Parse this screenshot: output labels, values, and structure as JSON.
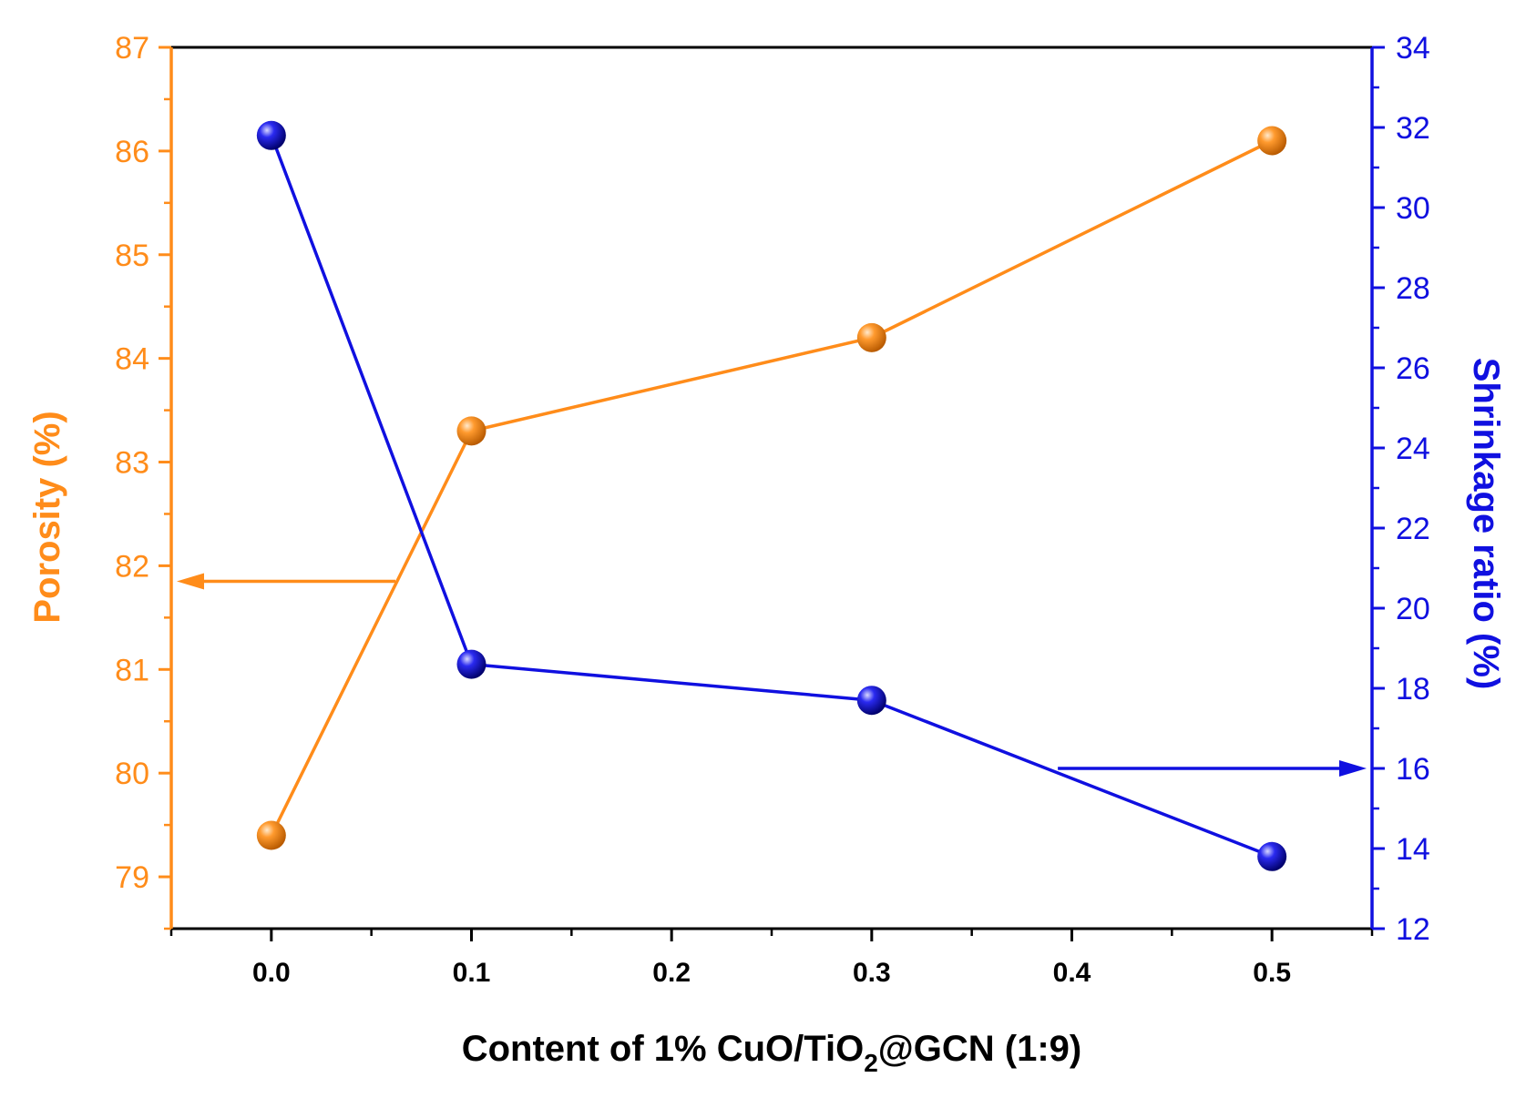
{
  "chart_data": {
    "type": "line",
    "title": "",
    "xlabel": {
      "prefix": "Content of 1% CuO/TiO",
      "subscript": "2",
      "suffix": "@GCN (1:9)"
    },
    "ylabel_left": "Porosity (%)",
    "ylabel_right": "Shrinkage ratio (%)",
    "xlim": [
      -0.05,
      0.55
    ],
    "ylim_left": [
      78.5,
      87
    ],
    "ylim_right": [
      12,
      34
    ],
    "x_ticks": [
      "0.0",
      "0.1",
      "0.2",
      "0.3",
      "0.4",
      "0.5"
    ],
    "y_ticks_left": [
      "79",
      "80",
      "81",
      "82",
      "83",
      "84",
      "85",
      "86",
      "87"
    ],
    "y_ticks_right": [
      "12",
      "14",
      "16",
      "18",
      "20",
      "22",
      "24",
      "26",
      "28",
      "30",
      "32",
      "34"
    ],
    "series": [
      {
        "name": "Porosity",
        "axis": "left",
        "color": "#FF8C1A",
        "x": [
          0.0,
          0.1,
          0.3,
          0.5
        ],
        "values": [
          79.4,
          83.3,
          84.2,
          86.1
        ]
      },
      {
        "name": "Shrinkage ratio",
        "axis": "right",
        "color": "#1010E0",
        "x": [
          0.0,
          0.1,
          0.3,
          0.5
        ],
        "values": [
          31.8,
          18.6,
          17.7,
          13.8
        ]
      }
    ],
    "annotations": [
      {
        "name": "porosity-axis-arrow",
        "points_to": "left",
        "series": "Porosity",
        "x_from": 0.062,
        "x_to": -0.05,
        "y": 81.85
      },
      {
        "name": "shrinkage-axis-arrow",
        "points_to": "right",
        "series": "Shrinkage ratio",
        "x_from": 0.393,
        "x_to": 0.55,
        "y": 16.0
      }
    ]
  }
}
